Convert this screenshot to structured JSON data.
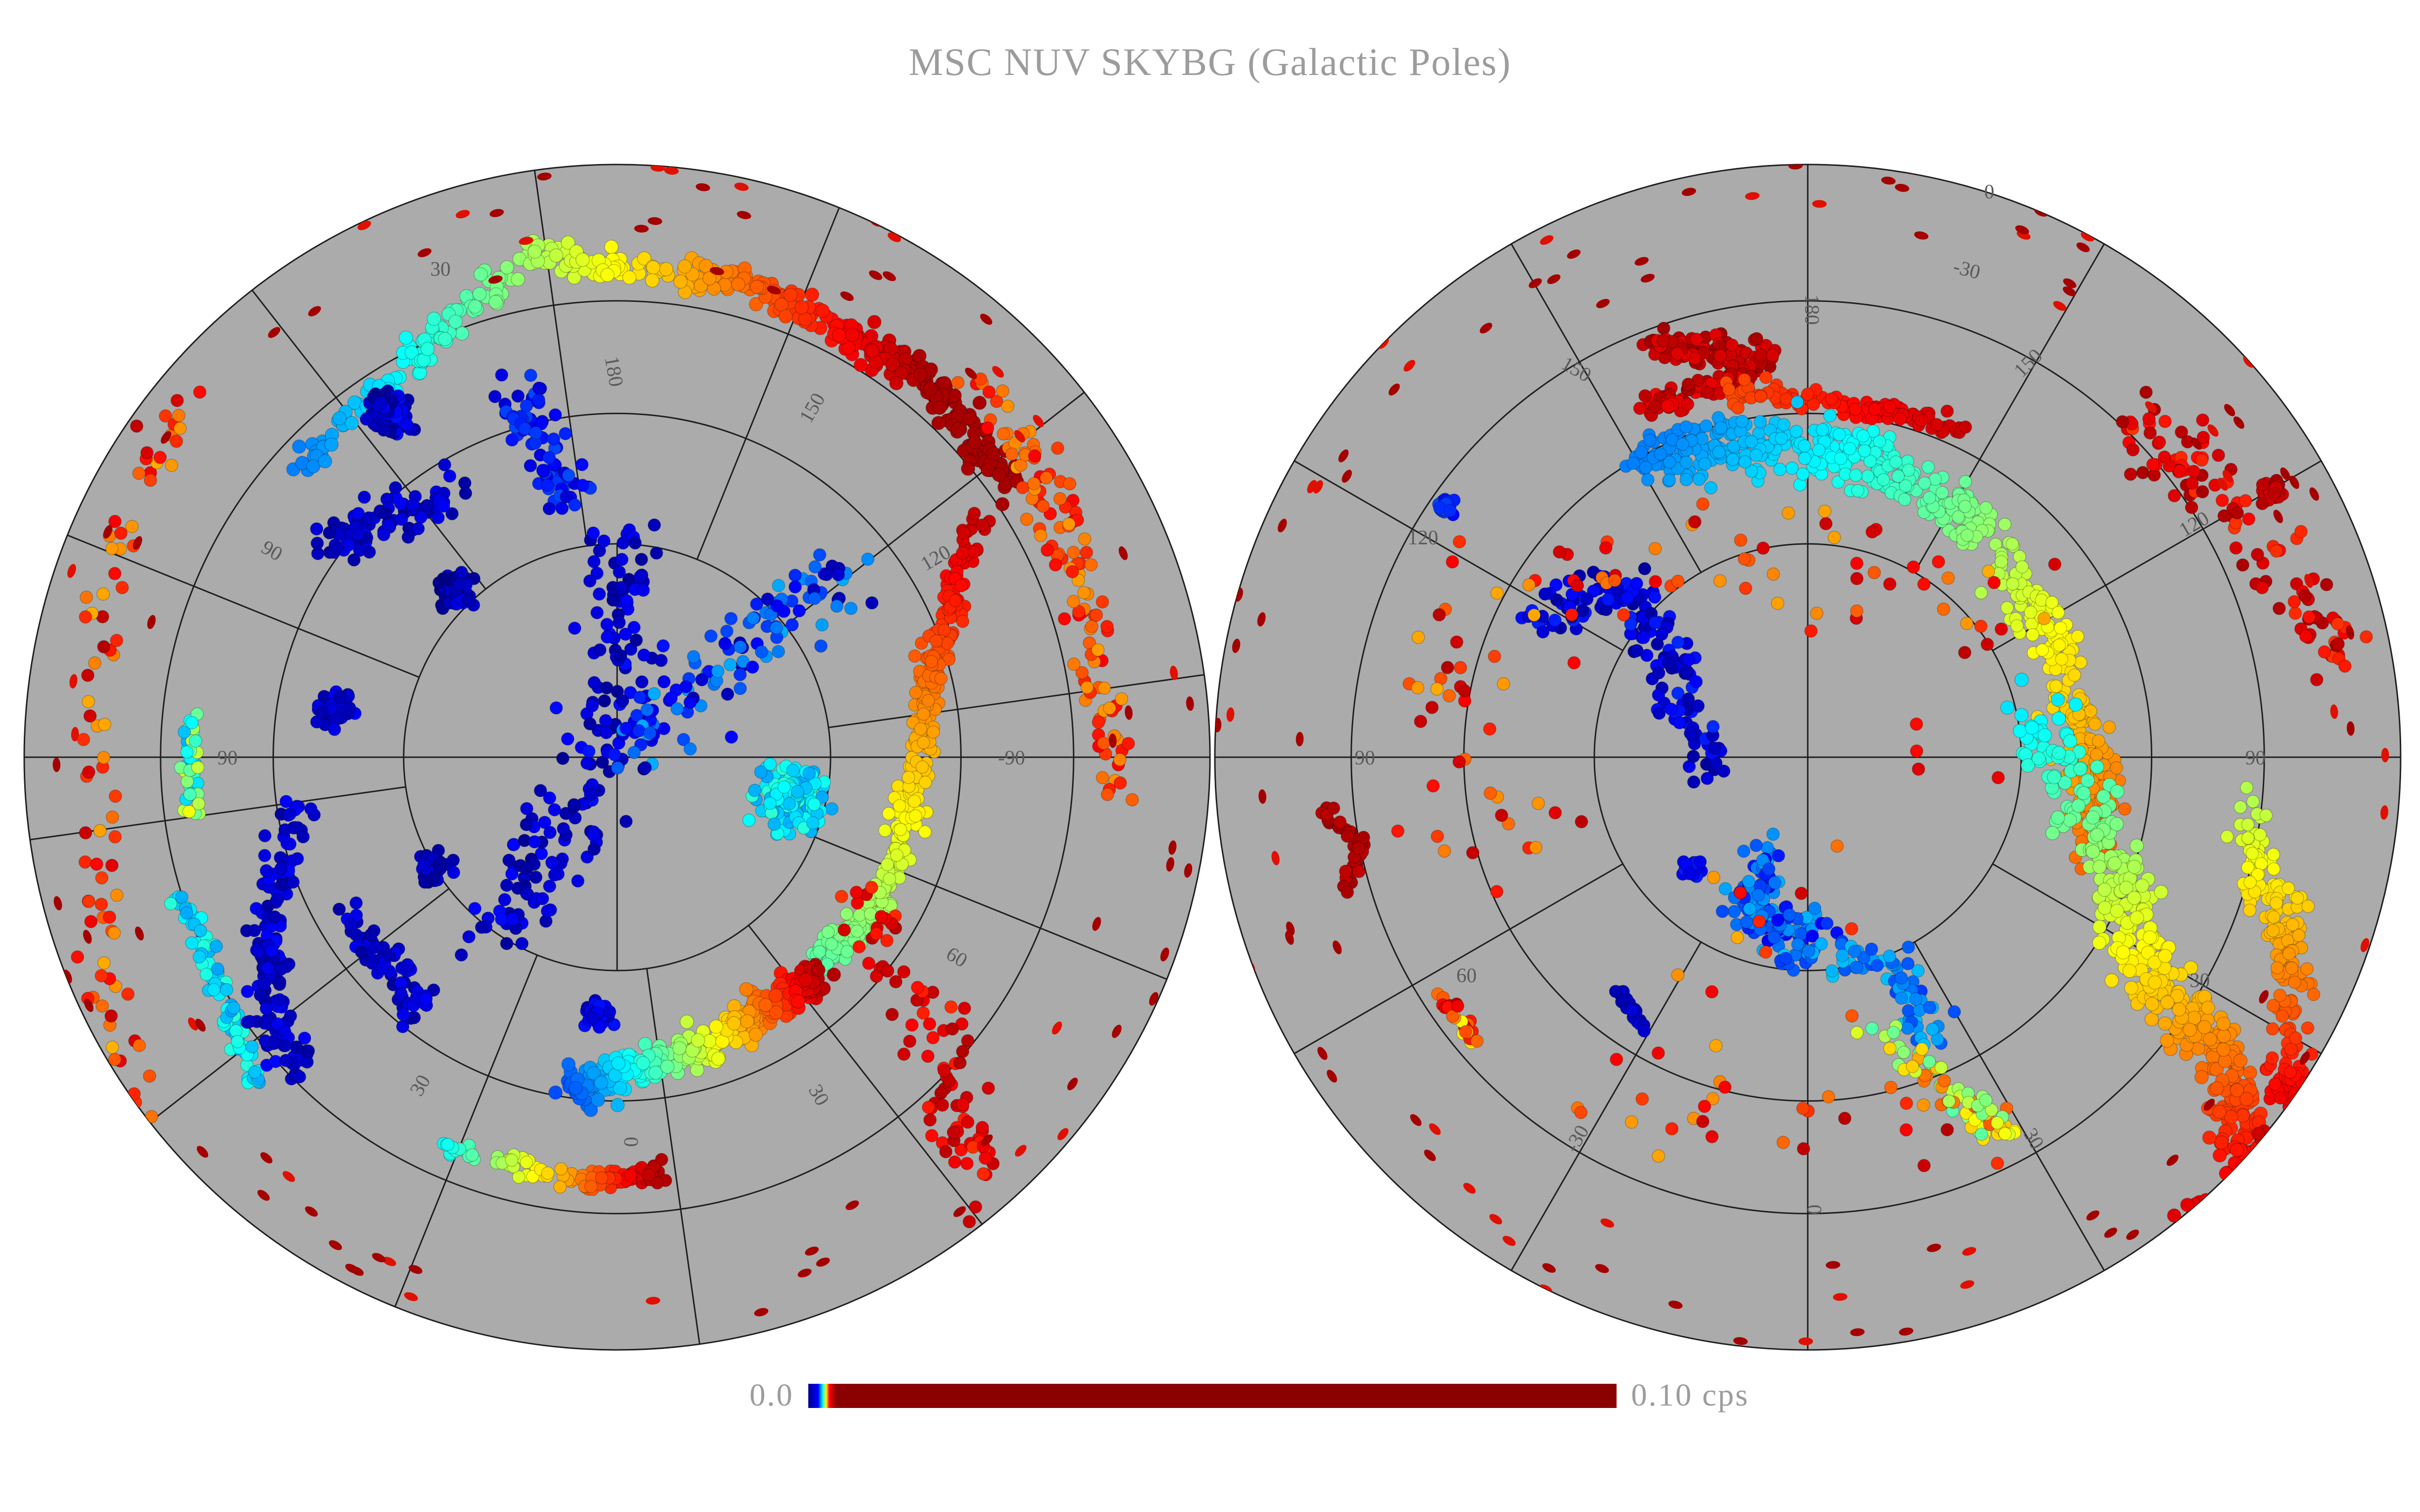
{
  "title": "MSC NUV SKYBG (Galactic Poles)",
  "colorbar": {
    "min_label": "0.0",
    "max_label": "0.10 cps",
    "min_value": 0.0,
    "max_value": 0.1,
    "unit": "cps",
    "colormap": "jet"
  },
  "colors": {
    "background": "#ffffff",
    "sphere_fill": "#ababab",
    "graticule": "#1e1e1e",
    "title_text": "#9c9c9c",
    "label_text": "#5a5a5a",
    "saturation": "#8b0000"
  },
  "hemispheres": [
    {
      "id": "north",
      "meridian_labels": [
        "30",
        "180",
        "150",
        "120",
        "90",
        "60",
        "30",
        "0"
      ],
      "parallel_labels": [
        "90",
        "-90"
      ]
    },
    {
      "id": "south",
      "meridian_labels": [
        "0",
        "-30",
        "180",
        "150",
        "150",
        "120",
        "120",
        "90",
        "90",
        "60",
        "30",
        "-30",
        "30",
        "0"
      ],
      "parallel_labels": []
    }
  ]
}
